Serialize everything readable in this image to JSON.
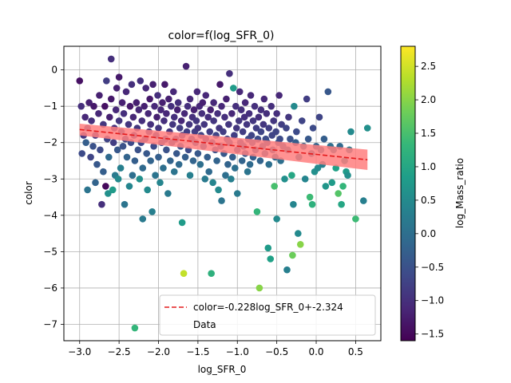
{
  "chart_data": {
    "type": "scatter",
    "title": "color=f(log_SFR_0)",
    "xlabel": "log_SFR_0",
    "ylabel": "color",
    "xlim": [
      -3.2,
      0.82
    ],
    "ylim": [
      -7.45,
      0.65
    ],
    "xticks": [
      -3.0,
      -2.5,
      -2.0,
      -1.5,
      -1.0,
      -0.5,
      0.0,
      0.5
    ],
    "xtick_labels": [
      "−3.0",
      "−2.5",
      "−2.0",
      "−1.5",
      "−1.0",
      "−0.5",
      "0.0",
      "0.5"
    ],
    "yticks": [
      0,
      -1,
      -2,
      -3,
      -4,
      -5,
      -6,
      -7
    ],
    "ytick_labels": [
      "0",
      "−1",
      "−2",
      "−3",
      "−4",
      "−5",
      "−6",
      "−7"
    ],
    "grid": true,
    "legend_position": "lower-right",
    "fit_line": {
      "label": "color=-0.228log_SFR_0+-2.324",
      "slope": -0.228,
      "intercept": -2.324,
      "x_range": [
        -3.0,
        0.65
      ],
      "style": "dashed",
      "color": "#e41a1c",
      "band_color": "#ff7f7f",
      "band_halfwidth_left": 0.16,
      "band_halfwidth_right": 0.28
    },
    "scatter_label": "Data",
    "colorbar": {
      "label": "log_Mass_ratio",
      "colormap": "viridis",
      "vmin": -1.6,
      "vmax": 2.8,
      "ticks": [
        -1.5,
        -1.0,
        -0.5,
        0.0,
        0.5,
        1.0,
        1.5,
        2.0,
        2.5
      ],
      "tick_labels": [
        "−1.5",
        "−1.0",
        "−0.5",
        "0.0",
        "0.5",
        "1.0",
        "1.5",
        "2.0",
        "2.5"
      ]
    },
    "points": [
      [
        -3.0,
        -0.3,
        -1.4
      ],
      [
        -2.98,
        -1.0,
        -1.0
      ],
      [
        -2.97,
        -2.3,
        -0.6
      ],
      [
        -2.95,
        -1.8,
        -0.9
      ],
      [
        -2.93,
        -1.3,
        -1.1
      ],
      [
        -2.92,
        -2.0,
        -0.3
      ],
      [
        -2.9,
        -3.3,
        0.1
      ],
      [
        -2.9,
        -1.6,
        -0.8
      ],
      [
        -2.88,
        -0.9,
        -1.2
      ],
      [
        -2.86,
        -2.4,
        -0.7
      ],
      [
        -2.85,
        -1.4,
        -1.0
      ],
      [
        -2.83,
        -2.1,
        -0.5
      ],
      [
        -2.82,
        -1.0,
        -1.3
      ],
      [
        -2.8,
        -3.1,
        -0.2
      ],
      [
        -2.8,
        -1.8,
        -0.9
      ],
      [
        -2.78,
        -2.6,
        -0.4
      ],
      [
        -2.76,
        -1.2,
        -1.1
      ],
      [
        -2.75,
        -0.7,
        -1.2
      ],
      [
        -2.74,
        -2.2,
        -0.6
      ],
      [
        -2.72,
        -3.7,
        -1.0
      ],
      [
        -2.7,
        -1.5,
        -0.9
      ],
      [
        -2.7,
        -2.8,
        -0.3
      ],
      [
        -2.68,
        -1.0,
        -1.4
      ],
      [
        -2.67,
        -3.2,
        -1.5
      ],
      [
        -2.66,
        -0.3,
        -0.8
      ],
      [
        -2.65,
        -1.9,
        -0.7
      ],
      [
        -2.64,
        -3.4,
        0.6
      ],
      [
        -2.63,
        -2.4,
        -0.1
      ],
      [
        -2.62,
        -1.3,
        -1.2
      ],
      [
        -2.6,
        0.3,
        -1.0
      ],
      [
        -2.6,
        -0.8,
        -1.3
      ],
      [
        -2.58,
        -3.3,
        0.8
      ],
      [
        -2.57,
        -2.0,
        -0.8
      ],
      [
        -2.56,
        -1.6,
        -1.0
      ],
      [
        -2.55,
        -2.9,
        0.2
      ],
      [
        -2.54,
        -1.1,
        -1.1
      ],
      [
        -2.53,
        -0.5,
        -1.2
      ],
      [
        -2.52,
        -2.2,
        -0.4
      ],
      [
        -2.51,
        -3.0,
        0.5
      ],
      [
        -2.5,
        -1.4,
        -0.9
      ],
      [
        -2.5,
        -0.2,
        -1.3
      ],
      [
        -2.48,
        -2.7,
        0.3
      ],
      [
        -2.47,
        -1.7,
        -0.6
      ],
      [
        -2.46,
        -0.9,
        -1.2
      ],
      [
        -2.45,
        -2.1,
        -0.5
      ],
      [
        -2.44,
        -1.2,
        -1.0
      ],
      [
        -2.43,
        -3.7,
        0.1
      ],
      [
        -2.42,
        -1.9,
        -0.7
      ],
      [
        -2.41,
        -0.6,
        -1.1
      ],
      [
        -2.4,
        -2.4,
        -0.2
      ],
      [
        -2.38,
        -1.5,
        -0.9
      ],
      [
        -2.37,
        -3.2,
        0.4
      ],
      [
        -2.36,
        -1.0,
        -1.3
      ],
      [
        -2.35,
        -2.0,
        -0.6
      ],
      [
        -2.34,
        -0.4,
        -1.0
      ],
      [
        -2.33,
        -2.9,
        0.0
      ],
      [
        -2.32,
        -1.3,
        -1.1
      ],
      [
        -2.31,
        -1.8,
        -0.8
      ],
      [
        -2.3,
        -7.1,
        1.3
      ],
      [
        -2.3,
        -2.5,
        -0.3
      ],
      [
        -2.28,
        -0.9,
        -1.2
      ],
      [
        -2.27,
        -1.6,
        -0.9
      ],
      [
        -2.26,
        -2.2,
        -0.5
      ],
      [
        -2.25,
        -1.1,
        -1.1
      ],
      [
        -2.24,
        -3.0,
        0.6
      ],
      [
        -2.23,
        -0.3,
        -1.0
      ],
      [
        -2.22,
        -2.0,
        -0.7
      ],
      [
        -2.21,
        -1.4,
        -1.0
      ],
      [
        -2.2,
        -4.1,
        0.2
      ],
      [
        -2.2,
        -2.7,
        -0.1
      ],
      [
        -2.18,
        -1.0,
        -1.2
      ],
      [
        -2.17,
        -1.9,
        -0.8
      ],
      [
        -2.16,
        -0.5,
        -1.1
      ],
      [
        -2.15,
        -2.3,
        -0.4
      ],
      [
        -2.14,
        -3.3,
        0.5
      ],
      [
        -2.13,
        -1.2,
        -1.1
      ],
      [
        -2.12,
        -1.7,
        -0.9
      ],
      [
        -2.11,
        -0.8,
        -1.3
      ],
      [
        -2.1,
        -2.5,
        -0.2
      ],
      [
        -2.1,
        -1.5,
        -1.0
      ],
      [
        -2.08,
        -3.9,
        0.3
      ],
      [
        -2.07,
        -0.4,
        -1.2
      ],
      [
        -2.06,
        -2.1,
        -0.6
      ],
      [
        -2.05,
        -1.0,
        -1.1
      ],
      [
        -2.04,
        -2.9,
        0.1
      ],
      [
        -2.03,
        -1.8,
        -0.8
      ],
      [
        -2.02,
        -1.3,
        -1.2
      ],
      [
        -2.01,
        -0.7,
        -1.0
      ],
      [
        -2.0,
        -2.4,
        -0.3
      ],
      [
        -2.0,
        -1.6,
        -0.9
      ],
      [
        -1.98,
        -3.1,
        0.4
      ],
      [
        -1.97,
        -1.1,
        -1.1
      ],
      [
        -1.96,
        -2.0,
        -0.7
      ],
      [
        -1.95,
        -0.9,
        -1.2
      ],
      [
        -1.94,
        -2.7,
        0.0
      ],
      [
        -1.93,
        -1.4,
        -1.0
      ],
      [
        -1.92,
        -0.4,
        -1.3
      ],
      [
        -1.91,
        -1.9,
        -0.8
      ],
      [
        -1.9,
        -2.2,
        -0.5
      ],
      [
        -1.9,
        -1.2,
        -1.1
      ],
      [
        -1.88,
        -3.4,
        0.2
      ],
      [
        -1.87,
        -0.8,
        -1.2
      ],
      [
        -1.86,
        -1.7,
        -0.9
      ],
      [
        -1.85,
        -2.5,
        -0.2
      ],
      [
        -1.84,
        -1.0,
        -1.0
      ],
      [
        -1.83,
        -2.0,
        -0.6
      ],
      [
        -1.82,
        -1.5,
        -0.9
      ],
      [
        -1.81,
        -0.6,
        -1.1
      ],
      [
        -1.8,
        -2.8,
        0.1
      ],
      [
        -1.8,
        -1.3,
        -1.0
      ],
      [
        -1.78,
        -1.9,
        -0.7
      ],
      [
        -1.77,
        -2.3,
        -0.4
      ],
      [
        -1.76,
        -1.1,
        -1.2
      ],
      [
        -1.75,
        -0.9,
        -1.0
      ],
      [
        -1.74,
        -2.6,
        -0.1
      ],
      [
        -1.73,
        -1.6,
        -0.8
      ],
      [
        -1.72,
        -2.1,
        -0.5
      ],
      [
        -1.71,
        -1.4,
        -1.1
      ],
      [
        -1.7,
        -4.2,
        0.8
      ],
      [
        -1.7,
        -1.8,
        -0.9
      ],
      [
        -1.68,
        -5.6,
        2.4
      ],
      [
        -1.67,
        -1.2,
        -1.1
      ],
      [
        -1.66,
        -2.4,
        -0.3
      ],
      [
        -1.65,
        0.1,
        -1.2
      ],
      [
        -1.64,
        -1.7,
        -0.8
      ],
      [
        -1.63,
        -1.0,
        -1.0
      ],
      [
        -1.62,
        -2.2,
        -0.6
      ],
      [
        -1.61,
        -1.5,
        -0.9
      ],
      [
        -1.6,
        -2.9,
        0.3
      ],
      [
        -1.6,
        -0.8,
        -1.1
      ],
      [
        -1.58,
        -1.9,
        -0.7
      ],
      [
        -1.57,
        -1.3,
        -1.0
      ],
      [
        -1.56,
        -2.5,
        -0.2
      ],
      [
        -1.55,
        -1.1,
        -1.2
      ],
      [
        -1.54,
        -1.7,
        -0.8
      ],
      [
        -1.53,
        -2.0,
        -0.5
      ],
      [
        -1.52,
        -1.4,
        -0.9
      ],
      [
        -1.51,
        -0.6,
        -1.1
      ],
      [
        -1.5,
        -2.3,
        -0.4
      ],
      [
        -1.5,
        -1.6,
        -0.9
      ],
      [
        -1.48,
        -1.0,
        -1.1
      ],
      [
        -1.47,
        -2.6,
        0.0
      ],
      [
        -1.46,
        -1.8,
        -0.7
      ],
      [
        -1.45,
        -1.2,
        -1.0
      ],
      [
        -1.44,
        -0.9,
        -1.2
      ],
      [
        -1.43,
        -2.1,
        -0.5
      ],
      [
        -1.42,
        -1.5,
        -0.9
      ],
      [
        -1.41,
        -3.0,
        0.2
      ],
      [
        -1.4,
        -0.7,
        -1.1
      ],
      [
        -1.4,
        -1.9,
        -0.8
      ],
      [
        -1.38,
        -2.4,
        -0.3
      ],
      [
        -1.37,
        -1.3,
        -1.0
      ],
      [
        -1.36,
        -2.8,
        -0.1
      ],
      [
        -1.35,
        -1.7,
        -0.8
      ],
      [
        -1.34,
        -1.1,
        -1.2
      ],
      [
        -1.33,
        -5.6,
        1.2
      ],
      [
        -1.32,
        -2.0,
        -0.6
      ],
      [
        -1.31,
        -3.1,
        0.4
      ],
      [
        -1.3,
        -1.4,
        -0.9
      ],
      [
        -1.3,
        -0.9,
        -1.1
      ],
      [
        -1.28,
        -2.2,
        -0.5
      ],
      [
        -1.27,
        -1.8,
        -0.7
      ],
      [
        -1.26,
        -2.5,
        -0.2
      ],
      [
        -1.25,
        -1.2,
        -1.0
      ],
      [
        -1.24,
        -3.3,
        0.5
      ],
      [
        -1.23,
        -1.6,
        -0.9
      ],
      [
        -1.22,
        -0.4,
        -1.3
      ],
      [
        -1.21,
        -2.1,
        -0.6
      ],
      [
        -1.2,
        -3.6,
        0.1
      ],
      [
        -1.2,
        -1.0,
        -1.1
      ],
      [
        -1.18,
        -1.7,
        -0.8
      ],
      [
        -1.17,
        -2.3,
        -0.4
      ],
      [
        -1.16,
        -1.3,
        -1.0
      ],
      [
        -1.15,
        -2.9,
        0.0
      ],
      [
        -1.14,
        -0.8,
        -1.2
      ],
      [
        -1.13,
        -1.9,
        -0.7
      ],
      [
        -1.12,
        -2.6,
        -0.2
      ],
      [
        -1.11,
        -1.5,
        -0.9
      ],
      [
        -1.1,
        -0.1,
        -1.0
      ],
      [
        -1.1,
        -2.0,
        -0.5
      ],
      [
        -1.08,
        -3.0,
        0.3
      ],
      [
        -1.07,
        -1.2,
        -1.1
      ],
      [
        -1.06,
        -2.4,
        -0.3
      ],
      [
        -1.05,
        -0.5,
        0.8
      ],
      [
        -1.04,
        -1.8,
        -0.8
      ],
      [
        -1.03,
        -2.7,
        0.0
      ],
      [
        -1.02,
        -1.0,
        -1.0
      ],
      [
        -1.01,
        -1.6,
        -0.9
      ],
      [
        -1.0,
        -2.2,
        -0.5
      ],
      [
        -1.0,
        -3.4,
        0.2
      ],
      [
        -0.98,
        -1.4,
        -0.9
      ],
      [
        -0.97,
        -0.6,
        -1.1
      ],
      [
        -0.96,
        -2.0,
        -0.6
      ],
      [
        -0.95,
        -1.1,
        -1.0
      ],
      [
        -0.94,
        -2.5,
        -0.2
      ],
      [
        -0.93,
        -1.7,
        -0.8
      ],
      [
        -0.92,
        -2.1,
        -0.5
      ],
      [
        -0.91,
        -1.3,
        -1.0
      ],
      [
        -0.9,
        -0.9,
        -1.1
      ],
      [
        -0.9,
        -2.3,
        -0.4
      ],
      [
        -0.88,
        -1.5,
        -0.9
      ],
      [
        -0.87,
        -2.8,
        0.1
      ],
      [
        -0.86,
        -1.9,
        -0.6
      ],
      [
        -0.85,
        -1.2,
        -1.0
      ],
      [
        -0.84,
        -2.6,
        -0.1
      ],
      [
        -0.83,
        -0.7,
        -1.1
      ],
      [
        -0.82,
        -1.8,
        -0.7
      ],
      [
        -0.81,
        -2.0,
        -0.5
      ],
      [
        -0.8,
        -1.4,
        -0.9
      ],
      [
        -0.8,
        -2.4,
        -0.3
      ],
      [
        -0.78,
        -1.0,
        -1.0
      ],
      [
        -0.77,
        -2.2,
        -0.4
      ],
      [
        -0.76,
        -1.6,
        -0.8
      ],
      [
        -0.75,
        -3.9,
        1.3
      ],
      [
        -0.74,
        -1.9,
        -0.6
      ],
      [
        -0.73,
        -1.3,
        -1.0
      ],
      [
        -0.72,
        -6.0,
        2.0
      ],
      [
        -0.71,
        -2.5,
        -0.2
      ],
      [
        -0.7,
        -1.1,
        -1.0
      ],
      [
        -0.7,
        -1.7,
        -0.7
      ],
      [
        -0.68,
        -2.1,
        -0.4
      ],
      [
        -0.67,
        -1.5,
        -0.9
      ],
      [
        -0.66,
        -0.8,
        -1.1
      ],
      [
        -0.65,
        -2.3,
        -0.3
      ],
      [
        -0.64,
        -1.9,
        -0.6
      ],
      [
        -0.63,
        -1.2,
        -1.0
      ],
      [
        -0.62,
        -2.0,
        -0.5
      ],
      [
        -0.61,
        -4.9,
        0.8
      ],
      [
        -0.6,
        -1.6,
        -0.8
      ],
      [
        -0.6,
        -2.6,
        0.0
      ],
      [
        -0.58,
        -5.2,
        0.9
      ],
      [
        -0.57,
        -1.0,
        -1.0
      ],
      [
        -0.56,
        -1.8,
        -0.7
      ],
      [
        -0.55,
        -2.2,
        -0.3
      ],
      [
        -0.54,
        -1.4,
        -0.9
      ],
      [
        -0.53,
        -3.2,
        1.5
      ],
      [
        -0.52,
        -2.4,
        -0.1
      ],
      [
        -0.51,
        -1.7,
        -0.7
      ],
      [
        -0.5,
        -4.1,
        0.5
      ],
      [
        -0.5,
        -1.2,
        -1.0
      ],
      [
        -0.48,
        -2.0,
        -0.4
      ],
      [
        -0.47,
        -0.7,
        -1.1
      ],
      [
        -0.46,
        -1.9,
        -0.6
      ],
      [
        -0.45,
        -2.5,
        0.0
      ],
      [
        -0.44,
        -1.5,
        -0.8
      ],
      [
        -0.42,
        -2.1,
        -0.3
      ],
      [
        -0.4,
        -3.0,
        0.6
      ],
      [
        -0.38,
        -1.6,
        -0.7
      ],
      [
        -0.37,
        -5.5,
        0.3
      ],
      [
        -0.36,
        -2.2,
        -0.2
      ],
      [
        -0.35,
        -1.3,
        -0.9
      ],
      [
        -0.33,
        -1.9,
        -0.5
      ],
      [
        -0.31,
        -2.9,
        1.0
      ],
      [
        -0.3,
        -5.1,
        1.8
      ],
      [
        -0.29,
        -3.7,
        0.4
      ],
      [
        -0.28,
        -1.0,
        0.5
      ],
      [
        -0.26,
        -2.0,
        -0.3
      ],
      [
        -0.25,
        -1.7,
        -0.6
      ],
      [
        -0.23,
        -4.5,
        0.5
      ],
      [
        -0.22,
        -2.4,
        0.1
      ],
      [
        -0.2,
        -4.8,
        2.0
      ],
      [
        -0.18,
        -1.4,
        -0.7
      ],
      [
        -0.16,
        -2.1,
        -0.2
      ],
      [
        -0.14,
        -3.0,
        0.4
      ],
      [
        -0.12,
        -0.8,
        -0.8
      ],
      [
        -0.1,
        -1.9,
        -0.4
      ],
      [
        -0.08,
        -3.5,
        1.4
      ],
      [
        -0.06,
        -2.3,
        0.0
      ],
      [
        -0.05,
        -3.7,
        1.2
      ],
      [
        -0.04,
        -1.6,
        -0.6
      ],
      [
        -0.02,
        -2.8,
        0.6
      ],
      [
        0.0,
        -2.1,
        -0.2
      ],
      [
        0.02,
        -2.7,
        0.5
      ],
      [
        0.04,
        -1.3,
        -0.7
      ],
      [
        0.06,
        -2.2,
        0.0
      ],
      [
        0.08,
        -2.6,
        0.3
      ],
      [
        0.1,
        -1.9,
        -0.3
      ],
      [
        0.12,
        -3.2,
        0.7
      ],
      [
        0.15,
        -0.6,
        -0.4
      ],
      [
        0.18,
        -2.1,
        0.0
      ],
      [
        0.2,
        -3.1,
        0.8
      ],
      [
        0.22,
        -2.2,
        0.1
      ],
      [
        0.25,
        -2.7,
        0.9
      ],
      [
        0.28,
        -3.4,
        1.6
      ],
      [
        0.3,
        -2.1,
        -0.1
      ],
      [
        0.32,
        -3.7,
        1.0
      ],
      [
        0.34,
        -3.2,
        1.3
      ],
      [
        0.36,
        -2.5,
        0.5
      ],
      [
        0.38,
        -2.8,
        0.8
      ],
      [
        0.4,
        -2.9,
        0.6
      ],
      [
        0.42,
        -2.2,
        0.2
      ],
      [
        0.44,
        -1.7,
        0.5
      ],
      [
        0.5,
        -4.1,
        1.4
      ],
      [
        0.6,
        -3.6,
        0.3
      ],
      [
        0.65,
        -1.6,
        0.6
      ]
    ]
  }
}
